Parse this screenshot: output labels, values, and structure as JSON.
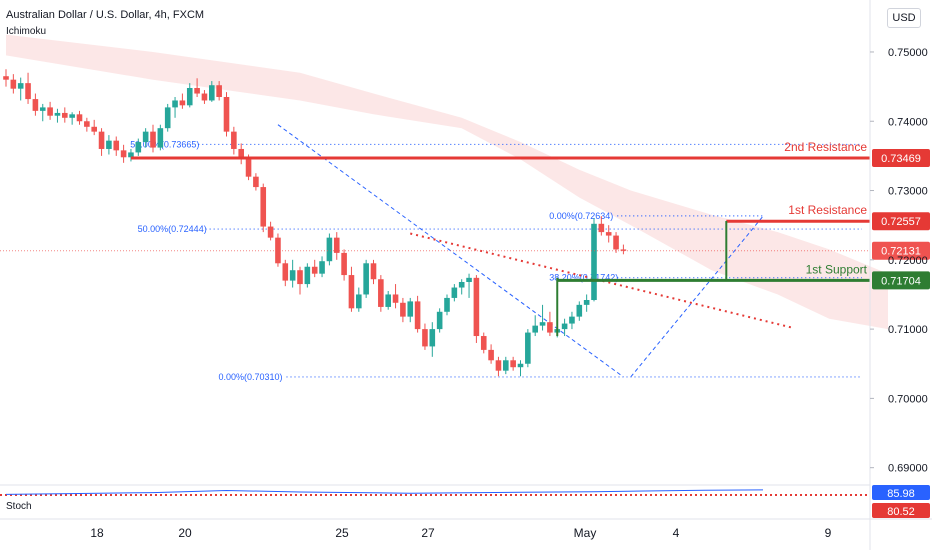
{
  "header": {
    "title": "Australian Dollar / U.S. Dollar, 4h, FXCM",
    "indicator": "Ichimoku",
    "currency": "USD"
  },
  "stoch": {
    "label": "Stoch",
    "value_k": "85.98",
    "value_d": "80.52",
    "level": "80"
  },
  "colors": {
    "up": "#26a69a",
    "down": "#ef5350",
    "resistance": "#e53935",
    "support": "#2e7d32",
    "fib": "#2962ff",
    "cloud": "#fce4e4",
    "stoch_line": "#2962ff",
    "stoch_level": "#e53935"
  },
  "chart_data": {
    "type": "candlestick",
    "symbol": "AUDUSD",
    "timeframe": "4h",
    "y_ticks": [
      "0.75000",
      "0.74000",
      "0.73000",
      "0.72000",
      "0.71000",
      "0.70000",
      "0.69000"
    ],
    "ylim": [
      0.6875,
      0.7575
    ],
    "x_ticks": [
      "18",
      "20",
      "25",
      "27",
      "May",
      "4",
      "9"
    ],
    "levels": [
      {
        "label": "2nd Resistance",
        "value": 0.73469,
        "price_label": "0.73469",
        "kind": "resistance"
      },
      {
        "label": "1st Resistance",
        "value": 0.72557,
        "price_label": "0.72557",
        "kind": "resistance"
      },
      {
        "label": "1st Support",
        "value": 0.71704,
        "price_label": "0.71704",
        "kind": "support"
      }
    ],
    "current_price": {
      "value": 0.72131,
      "price_label": "0.72131"
    },
    "fib_levels": [
      {
        "label": "50.00%(0.73665)",
        "value": 0.73665
      },
      {
        "label": "50.00%(0.72444)",
        "value": 0.72444
      },
      {
        "label": "0.00%(0.72634)",
        "value": 0.72634
      },
      {
        "label": "38.20%(0.71742)",
        "value": 0.71742
      },
      {
        "label": "0.00%(0.70310)",
        "value": 0.7031
      }
    ],
    "candles": [
      [
        0.7465,
        0.7475,
        0.745,
        0.746
      ],
      [
        0.746,
        0.7468,
        0.744,
        0.7447
      ],
      [
        0.7447,
        0.7463,
        0.743,
        0.7455
      ],
      [
        0.7455,
        0.747,
        0.7425,
        0.7432
      ],
      [
        0.7432,
        0.744,
        0.7408,
        0.7415
      ],
      [
        0.7415,
        0.7425,
        0.74,
        0.742
      ],
      [
        0.742,
        0.7428,
        0.7402,
        0.7408
      ],
      [
        0.7408,
        0.7418,
        0.7398,
        0.7412
      ],
      [
        0.7412,
        0.742,
        0.7398,
        0.7405
      ],
      [
        0.7405,
        0.7413,
        0.7395,
        0.741
      ],
      [
        0.741,
        0.7415,
        0.7395,
        0.74
      ],
      [
        0.74,
        0.7405,
        0.7385,
        0.7392
      ],
      [
        0.7392,
        0.7402,
        0.738,
        0.7385
      ],
      [
        0.7385,
        0.739,
        0.735,
        0.736
      ],
      [
        0.736,
        0.738,
        0.7352,
        0.7372
      ],
      [
        0.7372,
        0.7378,
        0.735,
        0.7358
      ],
      [
        0.7358,
        0.7366,
        0.734,
        0.7348
      ],
      [
        0.7348,
        0.736,
        0.7342,
        0.7355
      ],
      [
        0.7355,
        0.7375,
        0.735,
        0.737
      ],
      [
        0.737,
        0.739,
        0.7362,
        0.7385
      ],
      [
        0.7385,
        0.7395,
        0.7355,
        0.7362
      ],
      [
        0.7362,
        0.7395,
        0.7358,
        0.739
      ],
      [
        0.739,
        0.7425,
        0.7385,
        0.742
      ],
      [
        0.742,
        0.7435,
        0.7405,
        0.743
      ],
      [
        0.743,
        0.744,
        0.7418,
        0.7423
      ],
      [
        0.7423,
        0.7455,
        0.742,
        0.7448
      ],
      [
        0.7448,
        0.7462,
        0.7435,
        0.744
      ],
      [
        0.744,
        0.7445,
        0.7425,
        0.743
      ],
      [
        0.743,
        0.7458,
        0.7428,
        0.7452
      ],
      [
        0.7452,
        0.7458,
        0.743,
        0.7435
      ],
      [
        0.7435,
        0.7442,
        0.7378,
        0.7385
      ],
      [
        0.7385,
        0.7392,
        0.7352,
        0.736
      ],
      [
        0.736,
        0.7368,
        0.7338,
        0.7345
      ],
      [
        0.7345,
        0.7352,
        0.7315,
        0.732
      ],
      [
        0.732,
        0.7325,
        0.73,
        0.7305
      ],
      [
        0.7305,
        0.731,
        0.724,
        0.7248
      ],
      [
        0.7248,
        0.7255,
        0.7228,
        0.7232
      ],
      [
        0.7232,
        0.7238,
        0.719,
        0.7195
      ],
      [
        0.7195,
        0.72,
        0.7162,
        0.717
      ],
      [
        0.717,
        0.72,
        0.716,
        0.7185
      ],
      [
        0.7185,
        0.719,
        0.715,
        0.7165
      ],
      [
        0.7165,
        0.7195,
        0.716,
        0.719
      ],
      [
        0.719,
        0.72,
        0.7175,
        0.718
      ],
      [
        0.718,
        0.7205,
        0.7175,
        0.7198
      ],
      [
        0.7198,
        0.7238,
        0.7192,
        0.7232
      ],
      [
        0.7232,
        0.724,
        0.72,
        0.721
      ],
      [
        0.721,
        0.7215,
        0.717,
        0.7178
      ],
      [
        0.7178,
        0.719,
        0.7125,
        0.713
      ],
      [
        0.713,
        0.716,
        0.7125,
        0.715
      ],
      [
        0.715,
        0.72,
        0.7145,
        0.7195
      ],
      [
        0.7195,
        0.72,
        0.7165,
        0.7172
      ],
      [
        0.7172,
        0.7178,
        0.7125,
        0.7132
      ],
      [
        0.7132,
        0.7155,
        0.7128,
        0.715
      ],
      [
        0.715,
        0.7165,
        0.713,
        0.7138
      ],
      [
        0.7138,
        0.7145,
        0.711,
        0.7118
      ],
      [
        0.7118,
        0.7145,
        0.711,
        0.714
      ],
      [
        0.714,
        0.7148,
        0.7095,
        0.71
      ],
      [
        0.71,
        0.7108,
        0.707,
        0.7075
      ],
      [
        0.7075,
        0.711,
        0.706,
        0.71
      ],
      [
        0.71,
        0.713,
        0.7095,
        0.7125
      ],
      [
        0.7125,
        0.715,
        0.712,
        0.7145
      ],
      [
        0.7145,
        0.7165,
        0.714,
        0.716
      ],
      [
        0.716,
        0.7172,
        0.715,
        0.7168
      ],
      [
        0.7168,
        0.718,
        0.7145,
        0.7174
      ],
      [
        0.7174,
        0.7178,
        0.708,
        0.709
      ],
      [
        0.709,
        0.7095,
        0.7065,
        0.707
      ],
      [
        0.707,
        0.7078,
        0.705,
        0.7055
      ],
      [
        0.7055,
        0.706,
        0.7032,
        0.704
      ],
      [
        0.704,
        0.706,
        0.7035,
        0.7055
      ],
      [
        0.7055,
        0.706,
        0.704,
        0.7045
      ],
      [
        0.7045,
        0.7055,
        0.7032,
        0.705
      ],
      [
        0.705,
        0.71,
        0.7045,
        0.7095
      ],
      [
        0.7095,
        0.712,
        0.709,
        0.7105
      ],
      [
        0.7105,
        0.7135,
        0.7098,
        0.711
      ],
      [
        0.711,
        0.7125,
        0.709,
        0.7095
      ],
      [
        0.7095,
        0.711,
        0.7088,
        0.71
      ],
      [
        0.71,
        0.7115,
        0.709,
        0.7108
      ],
      [
        0.7108,
        0.7125,
        0.71,
        0.7118
      ],
      [
        0.7118,
        0.714,
        0.7112,
        0.7135
      ],
      [
        0.7135,
        0.715,
        0.7125,
        0.7142
      ],
      [
        0.7142,
        0.726,
        0.714,
        0.7252
      ],
      [
        0.7252,
        0.7263,
        0.7235,
        0.724
      ],
      [
        0.724,
        0.725,
        0.7225,
        0.7235
      ],
      [
        0.7235,
        0.724,
        0.721,
        0.7215
      ],
      [
        0.7215,
        0.7222,
        0.7208,
        0.7213
      ]
    ]
  }
}
